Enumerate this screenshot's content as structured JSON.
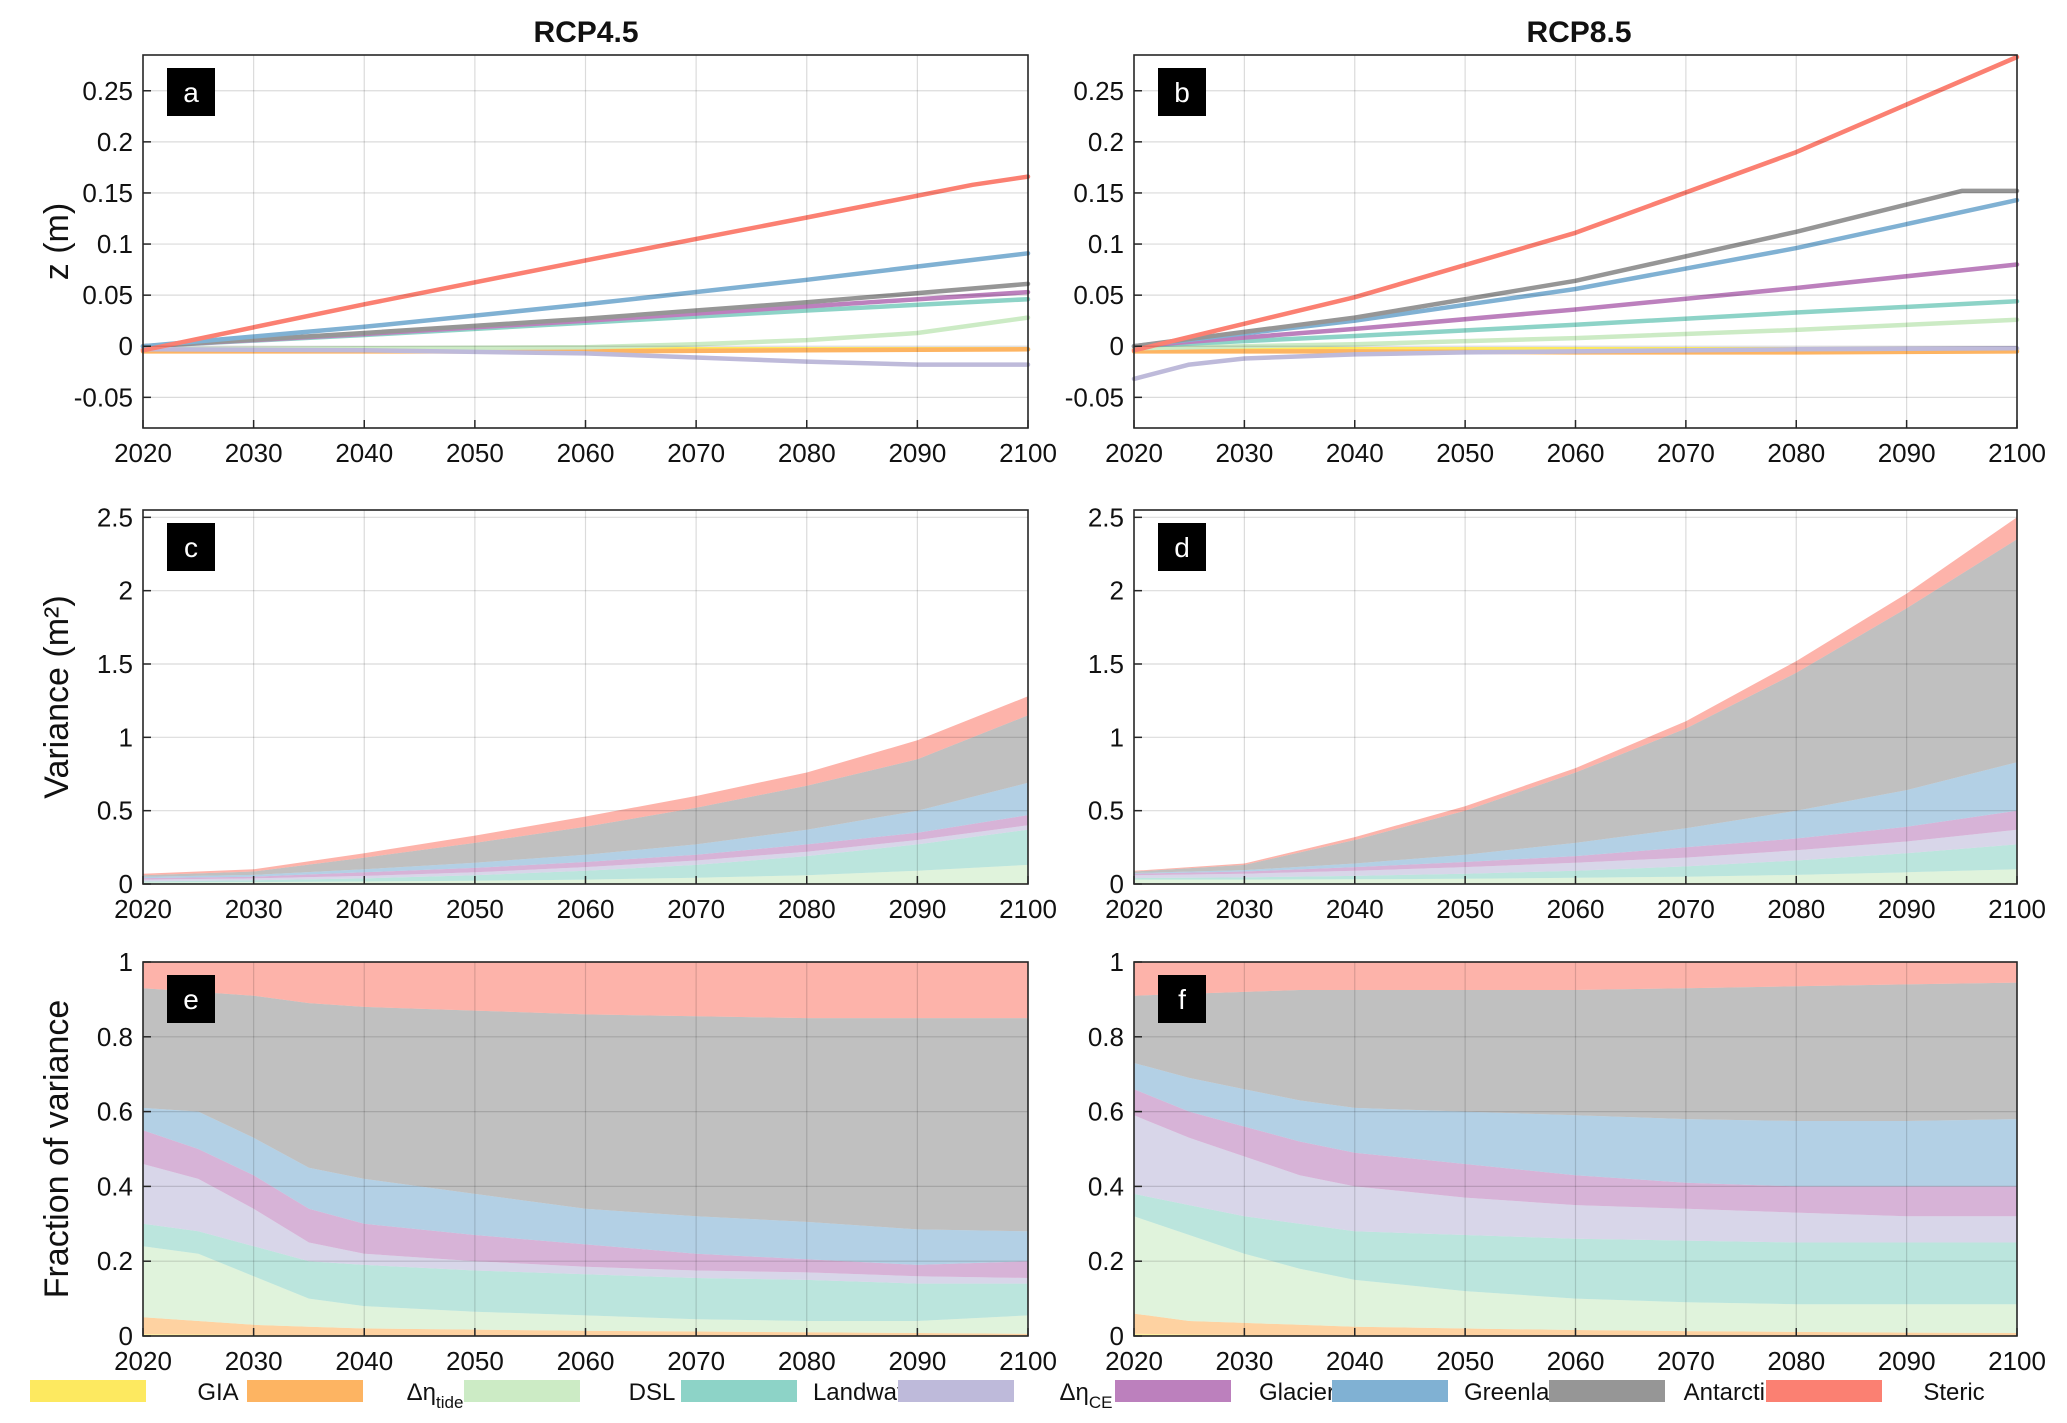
{
  "columns": [
    {
      "title": "RCP4.5"
    },
    {
      "title": "RCP8.5"
    }
  ],
  "colors": {
    "GIA": "#fde960",
    "tide": "#fdb462",
    "DSL": "#ccebc5",
    "Landwater": "#8dd3c7",
    "CE": "#bebada",
    "Glaciers": "#bc80bd",
    "Greenland": "#80b1d3",
    "Antarctica": "#969696",
    "Steric": "#fb8072"
  },
  "legend": [
    {
      "key": "GIA",
      "label": "GIA",
      "sub": ""
    },
    {
      "key": "tide",
      "label": "Δη",
      "sub": "tide"
    },
    {
      "key": "DSL",
      "label": "DSL",
      "sub": ""
    },
    {
      "key": "Landwater",
      "label": "Landwater",
      "sub": ""
    },
    {
      "key": "CE",
      "label": "Δη",
      "sub": "CE"
    },
    {
      "key": "Glaciers",
      "label": "Glaciers",
      "sub": ""
    },
    {
      "key": "Greenland",
      "label": "Greenland",
      "sub": ""
    },
    {
      "key": "Antarctica",
      "label": "Antarctica",
      "sub": ""
    },
    {
      "key": "Steric",
      "label": "Steric",
      "sub": ""
    }
  ],
  "chart_data": [
    {
      "panel": "a",
      "type": "line",
      "title": "RCP4.5",
      "xlabel": "",
      "ylabel": "z (m)",
      "xlim": [
        2020,
        2100
      ],
      "ylim": [
        -0.08,
        0.285
      ],
      "xticks": [
        2020,
        2030,
        2040,
        2050,
        2060,
        2070,
        2080,
        2090,
        2100
      ],
      "yticks": [
        -0.05,
        0,
        0.05,
        0.1,
        0.15,
        0.2,
        0.25
      ],
      "yticklabels": [
        "-0.05",
        "0",
        "0.05",
        "0.1",
        "0.15",
        "0.2",
        "0.25"
      ],
      "grid": true,
      "series": [
        {
          "key": "GIA",
          "x": [
            2020,
            2100
          ],
          "y": [
            -0.003,
            -0.003
          ]
        },
        {
          "key": "tide",
          "x": [
            2020,
            2040,
            2060,
            2080,
            2100
          ],
          "y": [
            -0.005,
            -0.005,
            -0.005,
            -0.004,
            -0.003
          ]
        },
        {
          "key": "DSL",
          "x": [
            2020,
            2040,
            2060,
            2070,
            2080,
            2090,
            2100
          ],
          "y": [
            -0.003,
            -0.002,
            -0.001,
            0.002,
            0.006,
            0.013,
            0.028
          ]
        },
        {
          "key": "CE",
          "x": [
            2020,
            2040,
            2060,
            2070,
            2080,
            2090,
            2100
          ],
          "y": [
            -0.003,
            -0.004,
            -0.007,
            -0.011,
            -0.015,
            -0.018,
            -0.018
          ]
        },
        {
          "key": "Landwater",
          "x": [
            2020,
            2040,
            2060,
            2080,
            2100
          ],
          "y": [
            0,
            0.011,
            0.023,
            0.035,
            0.046
          ]
        },
        {
          "key": "Glaciers",
          "x": [
            2020,
            2040,
            2060,
            2080,
            2100
          ],
          "y": [
            0,
            0.012,
            0.025,
            0.039,
            0.053
          ]
        },
        {
          "key": "Antarctica",
          "x": [
            2020,
            2040,
            2060,
            2080,
            2100
          ],
          "y": [
            0,
            0.013,
            0.027,
            0.043,
            0.061
          ]
        },
        {
          "key": "Greenland",
          "x": [
            2020,
            2040,
            2060,
            2080,
            2100
          ],
          "y": [
            0,
            0.019,
            0.041,
            0.065,
            0.091
          ]
        },
        {
          "key": "Steric",
          "x": [
            2020,
            2040,
            2060,
            2080,
            2095,
            2100
          ],
          "y": [
            -0.004,
            0.041,
            0.084,
            0.126,
            0.158,
            0.166
          ]
        }
      ]
    },
    {
      "panel": "b",
      "type": "line",
      "title": "RCP8.5",
      "xlabel": "",
      "ylabel": "",
      "xlim": [
        2020,
        2100
      ],
      "ylim": [
        -0.08,
        0.285
      ],
      "xticks": [
        2020,
        2030,
        2040,
        2050,
        2060,
        2070,
        2080,
        2090,
        2100
      ],
      "yticks": [
        -0.05,
        0,
        0.05,
        0.1,
        0.15,
        0.2,
        0.25
      ],
      "yticklabels": [
        "-0.05",
        "0",
        "0.05",
        "0.1",
        "0.15",
        "0.2",
        "0.25"
      ],
      "grid": true,
      "series": [
        {
          "key": "GIA",
          "x": [
            2020,
            2100
          ],
          "y": [
            -0.003,
            -0.003
          ]
        },
        {
          "key": "tide",
          "x": [
            2020,
            2040,
            2060,
            2080,
            2100
          ],
          "y": [
            -0.005,
            -0.005,
            -0.006,
            -0.006,
            -0.005
          ]
        },
        {
          "key": "DSL",
          "x": [
            2020,
            2040,
            2060,
            2080,
            2100
          ],
          "y": [
            -0.002,
            0.002,
            0.008,
            0.016,
            0.026
          ]
        },
        {
          "key": "CE",
          "x": [
            2020,
            2025,
            2030,
            2040,
            2050,
            2060,
            2080,
            2100
          ],
          "y": [
            -0.032,
            -0.018,
            -0.012,
            -0.008,
            -0.006,
            -0.005,
            -0.003,
            -0.002
          ]
        },
        {
          "key": "Landwater",
          "x": [
            2020,
            2040,
            2060,
            2080,
            2100
          ],
          "y": [
            0,
            0.01,
            0.021,
            0.033,
            0.044
          ]
        },
        {
          "key": "Glaciers",
          "x": [
            2020,
            2040,
            2060,
            2080,
            2100
          ],
          "y": [
            0,
            0.017,
            0.036,
            0.057,
            0.08
          ]
        },
        {
          "key": "Greenland",
          "x": [
            2020,
            2040,
            2060,
            2080,
            2100
          ],
          "y": [
            0,
            0.025,
            0.056,
            0.096,
            0.143
          ]
        },
        {
          "key": "Antarctica",
          "x": [
            2020,
            2040,
            2060,
            2080,
            2095,
            2100
          ],
          "y": [
            0,
            0.028,
            0.064,
            0.112,
            0.152,
            0.152
          ]
        },
        {
          "key": "Steric",
          "x": [
            2020,
            2040,
            2060,
            2080,
            2100
          ],
          "y": [
            -0.004,
            0.048,
            0.111,
            0.19,
            0.283
          ]
        }
      ]
    },
    {
      "panel": "c",
      "type": "area",
      "xlabel": "",
      "ylabel": "Variance (m²)",
      "xlim": [
        2020,
        2100
      ],
      "ylim": [
        0,
        2.55
      ],
      "xticks": [
        2020,
        2030,
        2040,
        2050,
        2060,
        2070,
        2080,
        2090,
        2100
      ],
      "yticks": [
        0,
        0.5,
        1,
        1.5,
        2,
        2.5
      ],
      "yticklabels": [
        "0",
        "0.5",
        "1",
        "1.5",
        "2",
        "2.5"
      ],
      "grid": true,
      "x": [
        2020,
        2030,
        2040,
        2050,
        2060,
        2070,
        2080,
        2090,
        2100
      ],
      "cumulative_tops": {
        "GIA": [
          0.001,
          0.001,
          0.001,
          0.001,
          0.001,
          0.001,
          0.001,
          0.001,
          0.001
        ],
        "tide": [
          0.003,
          0.003,
          0.003,
          0.004,
          0.004,
          0.004,
          0.004,
          0.005,
          0.005
        ],
        "DSL": [
          0.01,
          0.013,
          0.017,
          0.022,
          0.03,
          0.042,
          0.06,
          0.09,
          0.13
        ],
        "Landwater": [
          0.018,
          0.025,
          0.038,
          0.06,
          0.09,
          0.13,
          0.19,
          0.27,
          0.37
        ],
        "CE": [
          0.03,
          0.038,
          0.055,
          0.08,
          0.115,
          0.16,
          0.22,
          0.3,
          0.4
        ],
        "Glaciers": [
          0.04,
          0.05,
          0.08,
          0.11,
          0.15,
          0.2,
          0.27,
          0.35,
          0.47
        ],
        "Greenland": [
          0.05,
          0.062,
          0.1,
          0.145,
          0.2,
          0.27,
          0.37,
          0.5,
          0.69
        ],
        "Antarctica": [
          0.06,
          0.085,
          0.18,
          0.28,
          0.39,
          0.52,
          0.67,
          0.85,
          1.15
        ],
        "Steric": [
          0.07,
          0.1,
          0.21,
          0.33,
          0.46,
          0.6,
          0.76,
          0.98,
          1.28
        ]
      }
    },
    {
      "panel": "d",
      "type": "area",
      "xlabel": "",
      "ylabel": "",
      "xlim": [
        2020,
        2100
      ],
      "ylim": [
        0,
        2.55
      ],
      "xticks": [
        2020,
        2030,
        2040,
        2050,
        2060,
        2070,
        2080,
        2090,
        2100
      ],
      "yticks": [
        0,
        0.5,
        1,
        1.5,
        2,
        2.5
      ],
      "yticklabels": [
        "0",
        "0.5",
        "1",
        "1.5",
        "2",
        "2.5"
      ],
      "grid": true,
      "x": [
        2020,
        2030,
        2040,
        2050,
        2060,
        2070,
        2080,
        2090,
        2100
      ],
      "cumulative_tops": {
        "GIA": [
          0.001,
          0.001,
          0.001,
          0.001,
          0.001,
          0.001,
          0.001,
          0.001,
          0.001
        ],
        "tide": [
          0.004,
          0.004,
          0.004,
          0.004,
          0.005,
          0.005,
          0.005,
          0.005,
          0.005
        ],
        "DSL": [
          0.03,
          0.03,
          0.032,
          0.036,
          0.042,
          0.05,
          0.062,
          0.08,
          0.1
        ],
        "Landwater": [
          0.04,
          0.045,
          0.055,
          0.07,
          0.09,
          0.12,
          0.16,
          0.21,
          0.27
        ],
        "CE": [
          0.06,
          0.07,
          0.09,
          0.115,
          0.145,
          0.18,
          0.23,
          0.29,
          0.37
        ],
        "Glaciers": [
          0.07,
          0.085,
          0.115,
          0.15,
          0.19,
          0.25,
          0.31,
          0.39,
          0.5
        ],
        "Greenland": [
          0.075,
          0.095,
          0.14,
          0.2,
          0.28,
          0.38,
          0.5,
          0.64,
          0.83
        ],
        "Antarctica": [
          0.085,
          0.13,
          0.3,
          0.5,
          0.76,
          1.06,
          1.44,
          1.88,
          2.35
        ],
        "Steric": [
          0.09,
          0.14,
          0.32,
          0.53,
          0.79,
          1.11,
          1.52,
          1.98,
          2.5
        ]
      }
    },
    {
      "panel": "e",
      "type": "area",
      "xlabel": "",
      "ylabel": "Fraction of variance",
      "xlim": [
        2020,
        2100
      ],
      "ylim": [
        0,
        1
      ],
      "xticks": [
        2020,
        2030,
        2040,
        2050,
        2060,
        2070,
        2080,
        2090,
        2100
      ],
      "yticks": [
        0,
        0.2,
        0.4,
        0.6,
        0.8,
        1
      ],
      "yticklabels": [
        "0",
        "0.2",
        "0.4",
        "0.6",
        "0.8",
        "1"
      ],
      "grid": true,
      "x": [
        2020,
        2025,
        2030,
        2035,
        2040,
        2050,
        2060,
        2070,
        2080,
        2090,
        2100
      ],
      "cumulative_tops": {
        "GIA": [
          0.005,
          0.004,
          0.003,
          0.002,
          0.002,
          0.001,
          0.001,
          0.001,
          0.001,
          0.001,
          0.001
        ],
        "tide": [
          0.05,
          0.04,
          0.03,
          0.025,
          0.02,
          0.017,
          0.014,
          0.012,
          0.01,
          0.008,
          0.006
        ],
        "DSL": [
          0.24,
          0.22,
          0.16,
          0.1,
          0.08,
          0.065,
          0.055,
          0.045,
          0.04,
          0.04,
          0.055
        ],
        "Landwater": [
          0.3,
          0.28,
          0.24,
          0.2,
          0.19,
          0.175,
          0.165,
          0.155,
          0.15,
          0.14,
          0.14
        ],
        "CE": [
          0.46,
          0.42,
          0.34,
          0.25,
          0.22,
          0.2,
          0.185,
          0.175,
          0.17,
          0.16,
          0.155
        ],
        "Glaciers": [
          0.55,
          0.5,
          0.43,
          0.34,
          0.3,
          0.27,
          0.245,
          0.22,
          0.205,
          0.19,
          0.2
        ],
        "Greenland": [
          0.61,
          0.6,
          0.53,
          0.45,
          0.42,
          0.38,
          0.34,
          0.32,
          0.305,
          0.285,
          0.28
        ],
        "Antarctica": [
          0.93,
          0.92,
          0.91,
          0.89,
          0.88,
          0.87,
          0.86,
          0.855,
          0.85,
          0.85,
          0.85
        ],
        "Steric": [
          1,
          1,
          1,
          1,
          1,
          1,
          1,
          1,
          1,
          1,
          1
        ]
      }
    },
    {
      "panel": "f",
      "type": "area",
      "xlabel": "",
      "ylabel": "",
      "xlim": [
        2020,
        2100
      ],
      "ylim": [
        0,
        1
      ],
      "xticks": [
        2020,
        2030,
        2040,
        2050,
        2060,
        2070,
        2080,
        2090,
        2100
      ],
      "yticks": [
        0,
        0.2,
        0.4,
        0.6,
        0.8,
        1
      ],
      "yticklabels": [
        "0",
        "0.2",
        "0.4",
        "0.6",
        "0.8",
        "1"
      ],
      "grid": true,
      "x": [
        2020,
        2025,
        2030,
        2035,
        2040,
        2050,
        2060,
        2070,
        2080,
        2090,
        2100
      ],
      "cumulative_tops": {
        "GIA": [
          0.006,
          0.004,
          0.003,
          0.002,
          0.002,
          0.001,
          0.001,
          0.001,
          0.001,
          0.001,
          0.001
        ],
        "tide": [
          0.06,
          0.04,
          0.035,
          0.03,
          0.025,
          0.02,
          0.016,
          0.013,
          0.011,
          0.009,
          0.008
        ],
        "DSL": [
          0.32,
          0.27,
          0.22,
          0.18,
          0.15,
          0.12,
          0.1,
          0.09,
          0.085,
          0.085,
          0.085
        ],
        "Landwater": [
          0.38,
          0.35,
          0.32,
          0.3,
          0.28,
          0.27,
          0.26,
          0.255,
          0.25,
          0.25,
          0.25
        ],
        "CE": [
          0.59,
          0.53,
          0.48,
          0.43,
          0.4,
          0.37,
          0.35,
          0.34,
          0.33,
          0.32,
          0.32
        ],
        "Glaciers": [
          0.66,
          0.6,
          0.56,
          0.52,
          0.49,
          0.46,
          0.43,
          0.41,
          0.4,
          0.4,
          0.4
        ],
        "Greenland": [
          0.73,
          0.69,
          0.66,
          0.63,
          0.61,
          0.6,
          0.59,
          0.58,
          0.575,
          0.575,
          0.58
        ],
        "Antarctica": [
          0.91,
          0.915,
          0.92,
          0.925,
          0.925,
          0.925,
          0.925,
          0.93,
          0.935,
          0.94,
          0.945
        ],
        "Steric": [
          1,
          1,
          1,
          1,
          1,
          1,
          1,
          1,
          1,
          1,
          1
        ]
      }
    }
  ]
}
